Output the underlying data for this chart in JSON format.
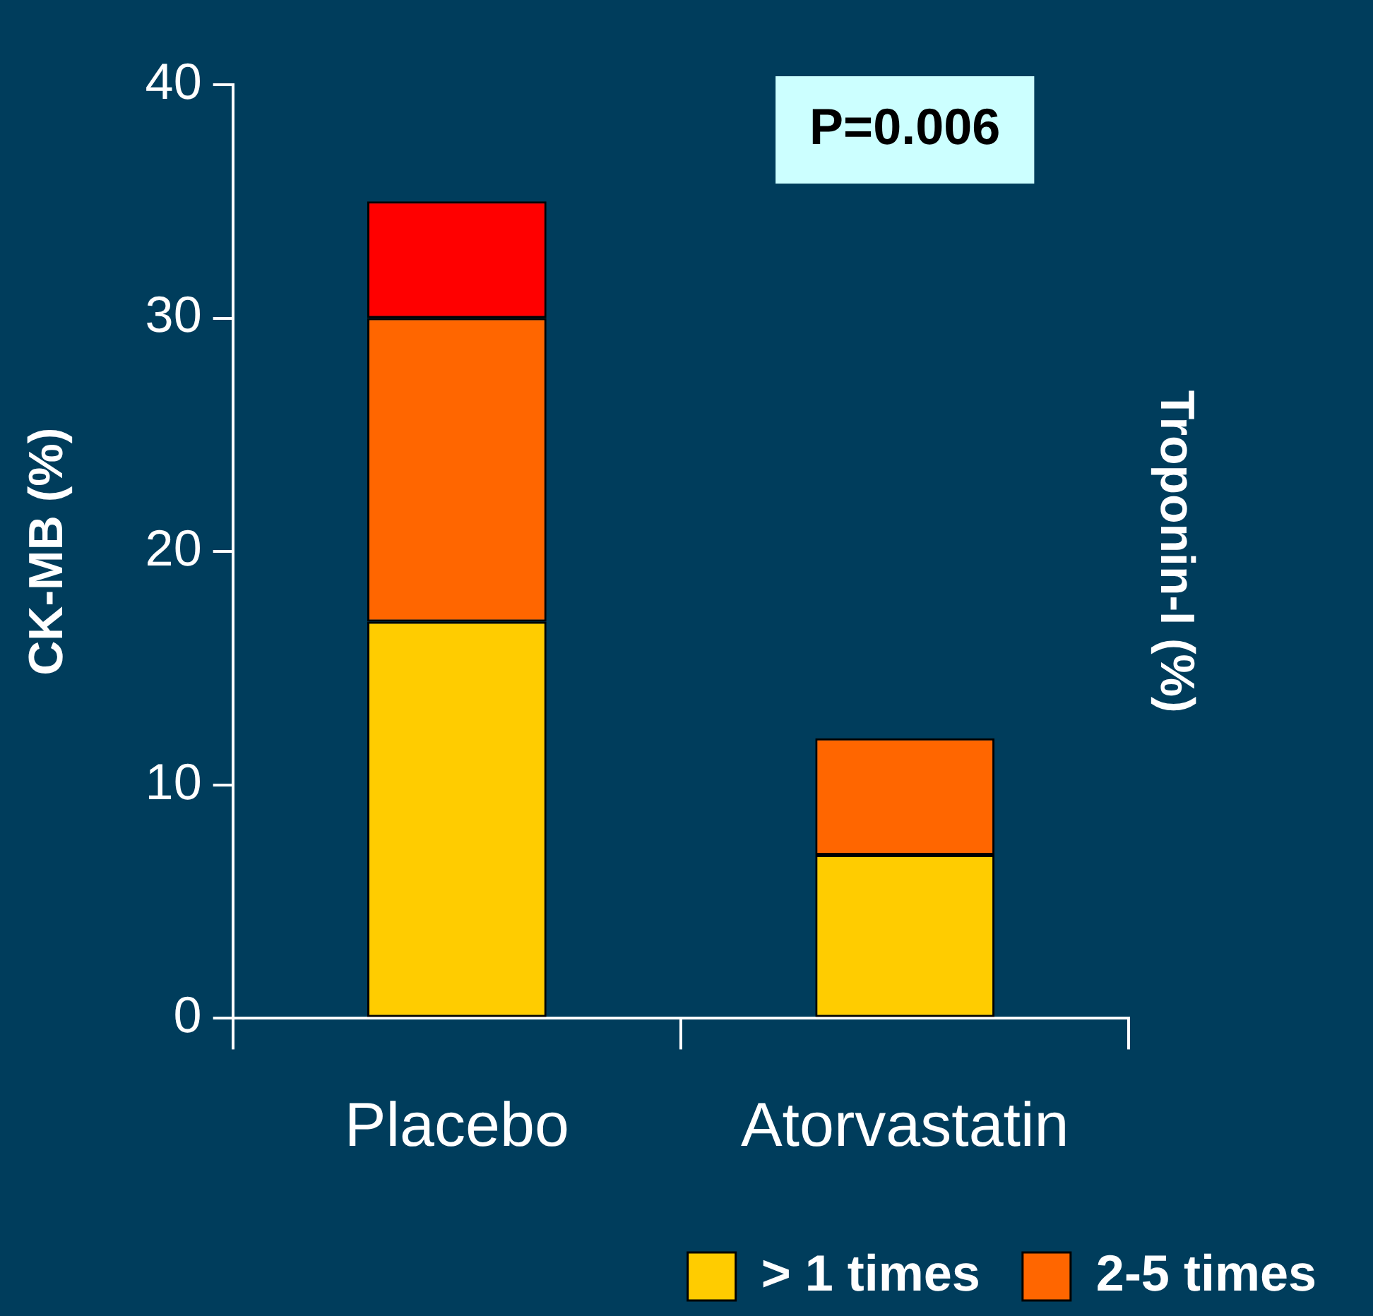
{
  "chart_data": {
    "type": "bar",
    "stacked": true,
    "categories": [
      "Placebo",
      "Atorvastatin"
    ],
    "series": [
      {
        "name": "> 1 times",
        "color": "#ffcc00",
        "values": [
          17,
          7
        ]
      },
      {
        "name": "2-5 times",
        "color": "#ff6600",
        "values": [
          13,
          5
        ]
      },
      {
        "color": "#ff0000",
        "values": [
          5,
          null
        ]
      }
    ],
    "ylabel": "CK-MB (%)",
    "y2label": "Troponin-I (%)",
    "ylim": [
      0,
      40
    ],
    "yticks": [
      0,
      10,
      20,
      30,
      40
    ],
    "grid": false,
    "legend": "bottom",
    "annotations": [
      "P=0.006"
    ]
  }
}
